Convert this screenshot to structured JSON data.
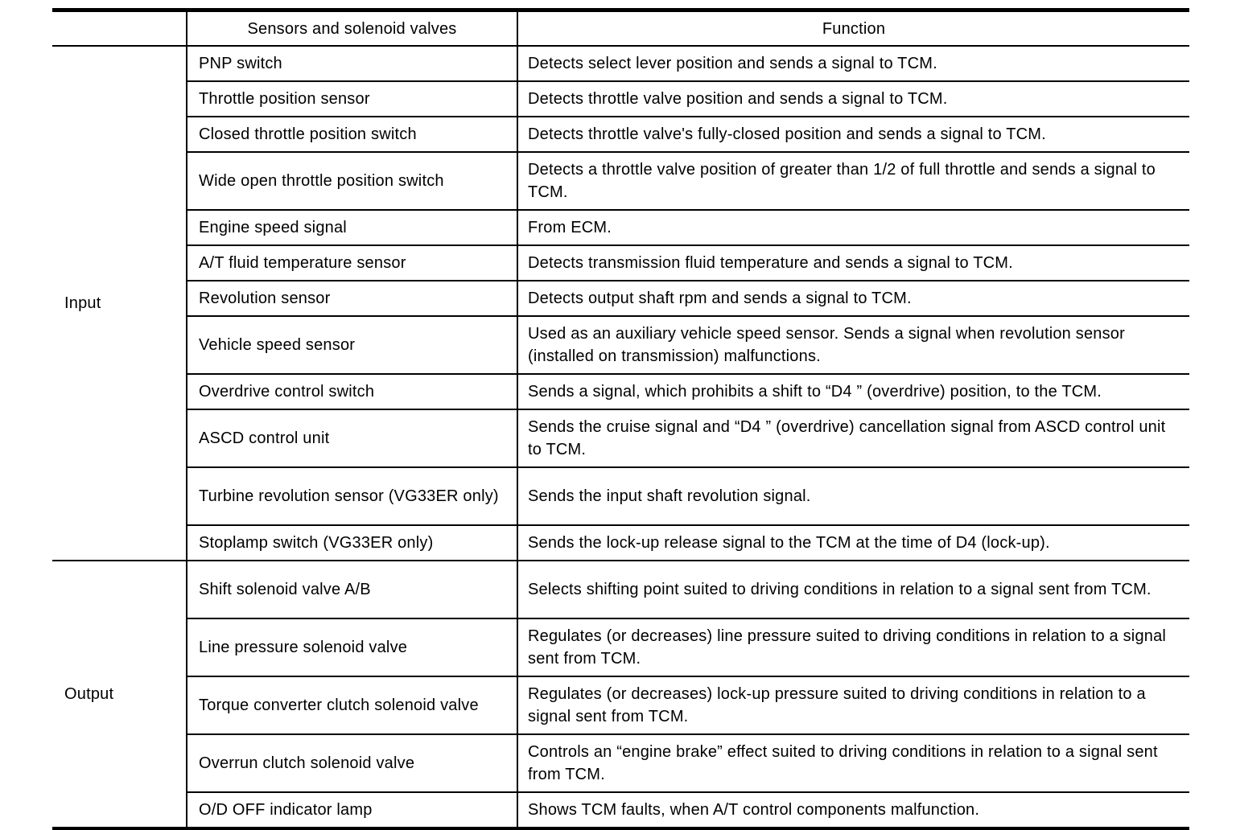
{
  "style": {
    "background": "#ffffff",
    "line_color": "#000000",
    "text_color": "#000000"
  },
  "table": {
    "header": {
      "group": "",
      "sensors": "Sensors and solenoid valves",
      "function": "Function"
    },
    "groups": [
      {
        "label": "Input",
        "rows": [
          {
            "sensor": "PNP switch",
            "function": "Detects select lever position and sends a signal to TCM."
          },
          {
            "sensor": "Throttle position sensor",
            "function": "Detects throttle valve position and sends a signal to TCM."
          },
          {
            "sensor": "Closed throttle position switch",
            "function": "Detects throttle valve's fully-closed position and sends a signal to TCM."
          },
          {
            "sensor": "Wide open throttle position switch",
            "function": "Detects a throttle valve position of greater than 1/2 of full throttle and sends a signal to TCM."
          },
          {
            "sensor": "Engine speed signal",
            "function": "From ECM."
          },
          {
            "sensor": "A/T fluid temperature sensor",
            "function": "Detects transmission fluid temperature and sends a signal to TCM."
          },
          {
            "sensor": "Revolution sensor",
            "function": "Detects output shaft rpm and sends a signal to TCM."
          },
          {
            "sensor": "Vehicle speed sensor",
            "function": "Used as an auxiliary vehicle speed sensor. Sends a signal when revolution sensor (installed on transmission) malfunctions."
          },
          {
            "sensor": "Overdrive control switch",
            "function": "Sends a signal, which prohibits a shift to “D4 ” (overdrive) position, to the TCM."
          },
          {
            "sensor": "ASCD control unit",
            "function": "Sends the cruise signal and “D4 ” (overdrive) cancellation signal from ASCD control unit to TCM."
          },
          {
            "sensor": "Turbine revolution sensor (VG33ER only)",
            "function": "Sends the input shaft revolution signal."
          },
          {
            "sensor": "Stoplamp switch (VG33ER only)",
            "function": "Sends the lock-up release signal to the TCM at the time of D4 (lock-up)."
          }
        ]
      },
      {
        "label": "Output",
        "rows": [
          {
            "sensor": "Shift solenoid valve A/B",
            "function": "Selects shifting point suited to driving conditions in relation to a signal sent from TCM."
          },
          {
            "sensor": "Line pressure solenoid valve",
            "function": "Regulates (or decreases) line pressure suited to driving conditions in relation to a signal sent from TCM."
          },
          {
            "sensor": "Torque converter clutch solenoid valve",
            "function": "Regulates (or decreases) lock-up pressure suited to driving conditions in relation to a signal sent from TCM."
          },
          {
            "sensor": "Overrun clutch solenoid valve",
            "function": "Controls an “engine brake” effect suited to driving conditions in relation to a signal sent from TCM."
          },
          {
            "sensor": "O/D OFF indicator lamp",
            "function": "Shows TCM faults, when A/T control components malfunction."
          }
        ]
      }
    ]
  }
}
